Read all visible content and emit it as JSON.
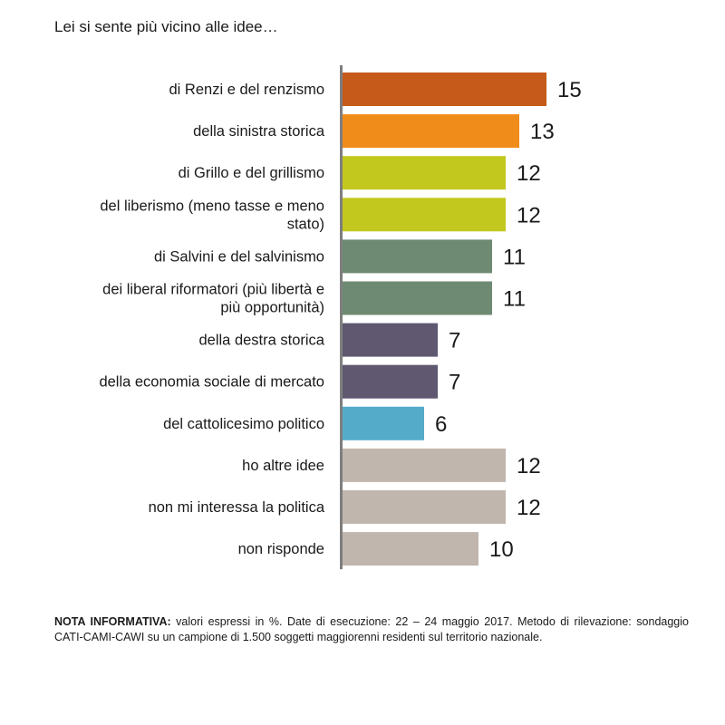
{
  "chart_data": {
    "type": "bar",
    "orientation": "horizontal",
    "title": "Lei si sente più vicino alle idee…",
    "categories": [
      [
        "di Renzi e del renzismo"
      ],
      [
        "della sinistra storica"
      ],
      [
        "di Grillo e del grillismo"
      ],
      [
        "del liberismo (meno tasse e meno",
        "stato)"
      ],
      [
        "di Salvini e del salvinismo"
      ],
      [
        "dei liberal riformatori (più libertà e",
        "più opportunità)"
      ],
      [
        "della destra storica"
      ],
      [
        "della economia sociale di mercato"
      ],
      [
        "del cattolicesimo politico"
      ],
      [
        "ho altre idee"
      ],
      [
        "non mi interessa la politica"
      ],
      [
        "non risponde"
      ]
    ],
    "values": [
      15,
      13,
      12,
      12,
      11,
      11,
      7,
      7,
      6,
      12,
      12,
      10
    ],
    "colors": [
      "#c55a1a",
      "#f08c1a",
      "#c3c81e",
      "#c3c81e",
      "#6f8a72",
      "#6f8a72",
      "#5f5870",
      "#5f5870",
      "#54abc9",
      "#c1b6ae",
      "#c1b6ae",
      "#c1b6ae"
    ],
    "axis_color": "#7f7f7f",
    "grid": false,
    "legend": "none"
  },
  "note": {
    "label": "NOTA INFORMATIVA:",
    "text": " valori espressi in %. Date di esecuzione: 22 – 24 maggio 2017. Metodo di rilevazione: sondaggio CATI-CAMI-CAWI su un campione di 1.500 soggetti maggiorenni residenti sul territorio nazionale."
  }
}
